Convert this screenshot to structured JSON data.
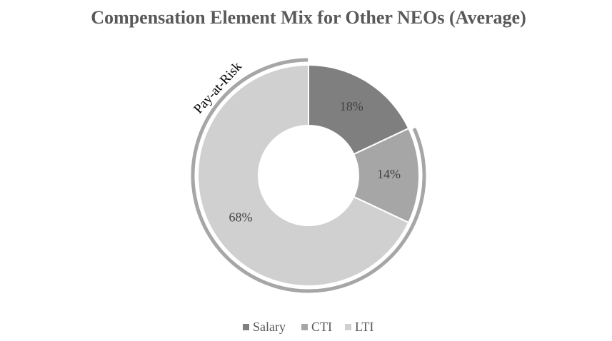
{
  "chart_data": {
    "type": "donut",
    "title": "Compensation Element Mix for Other NEOs (Average)",
    "categories": [
      "Salary",
      "CTI",
      "LTI"
    ],
    "values": [
      18,
      14,
      68
    ],
    "value_labels": [
      "18%",
      "14%",
      "68%"
    ],
    "colors": [
      "#7f7f7f",
      "#a6a6a6",
      "#d0d0d0"
    ],
    "annotation": "Pay-at-Risk",
    "legend": "bottom"
  }
}
